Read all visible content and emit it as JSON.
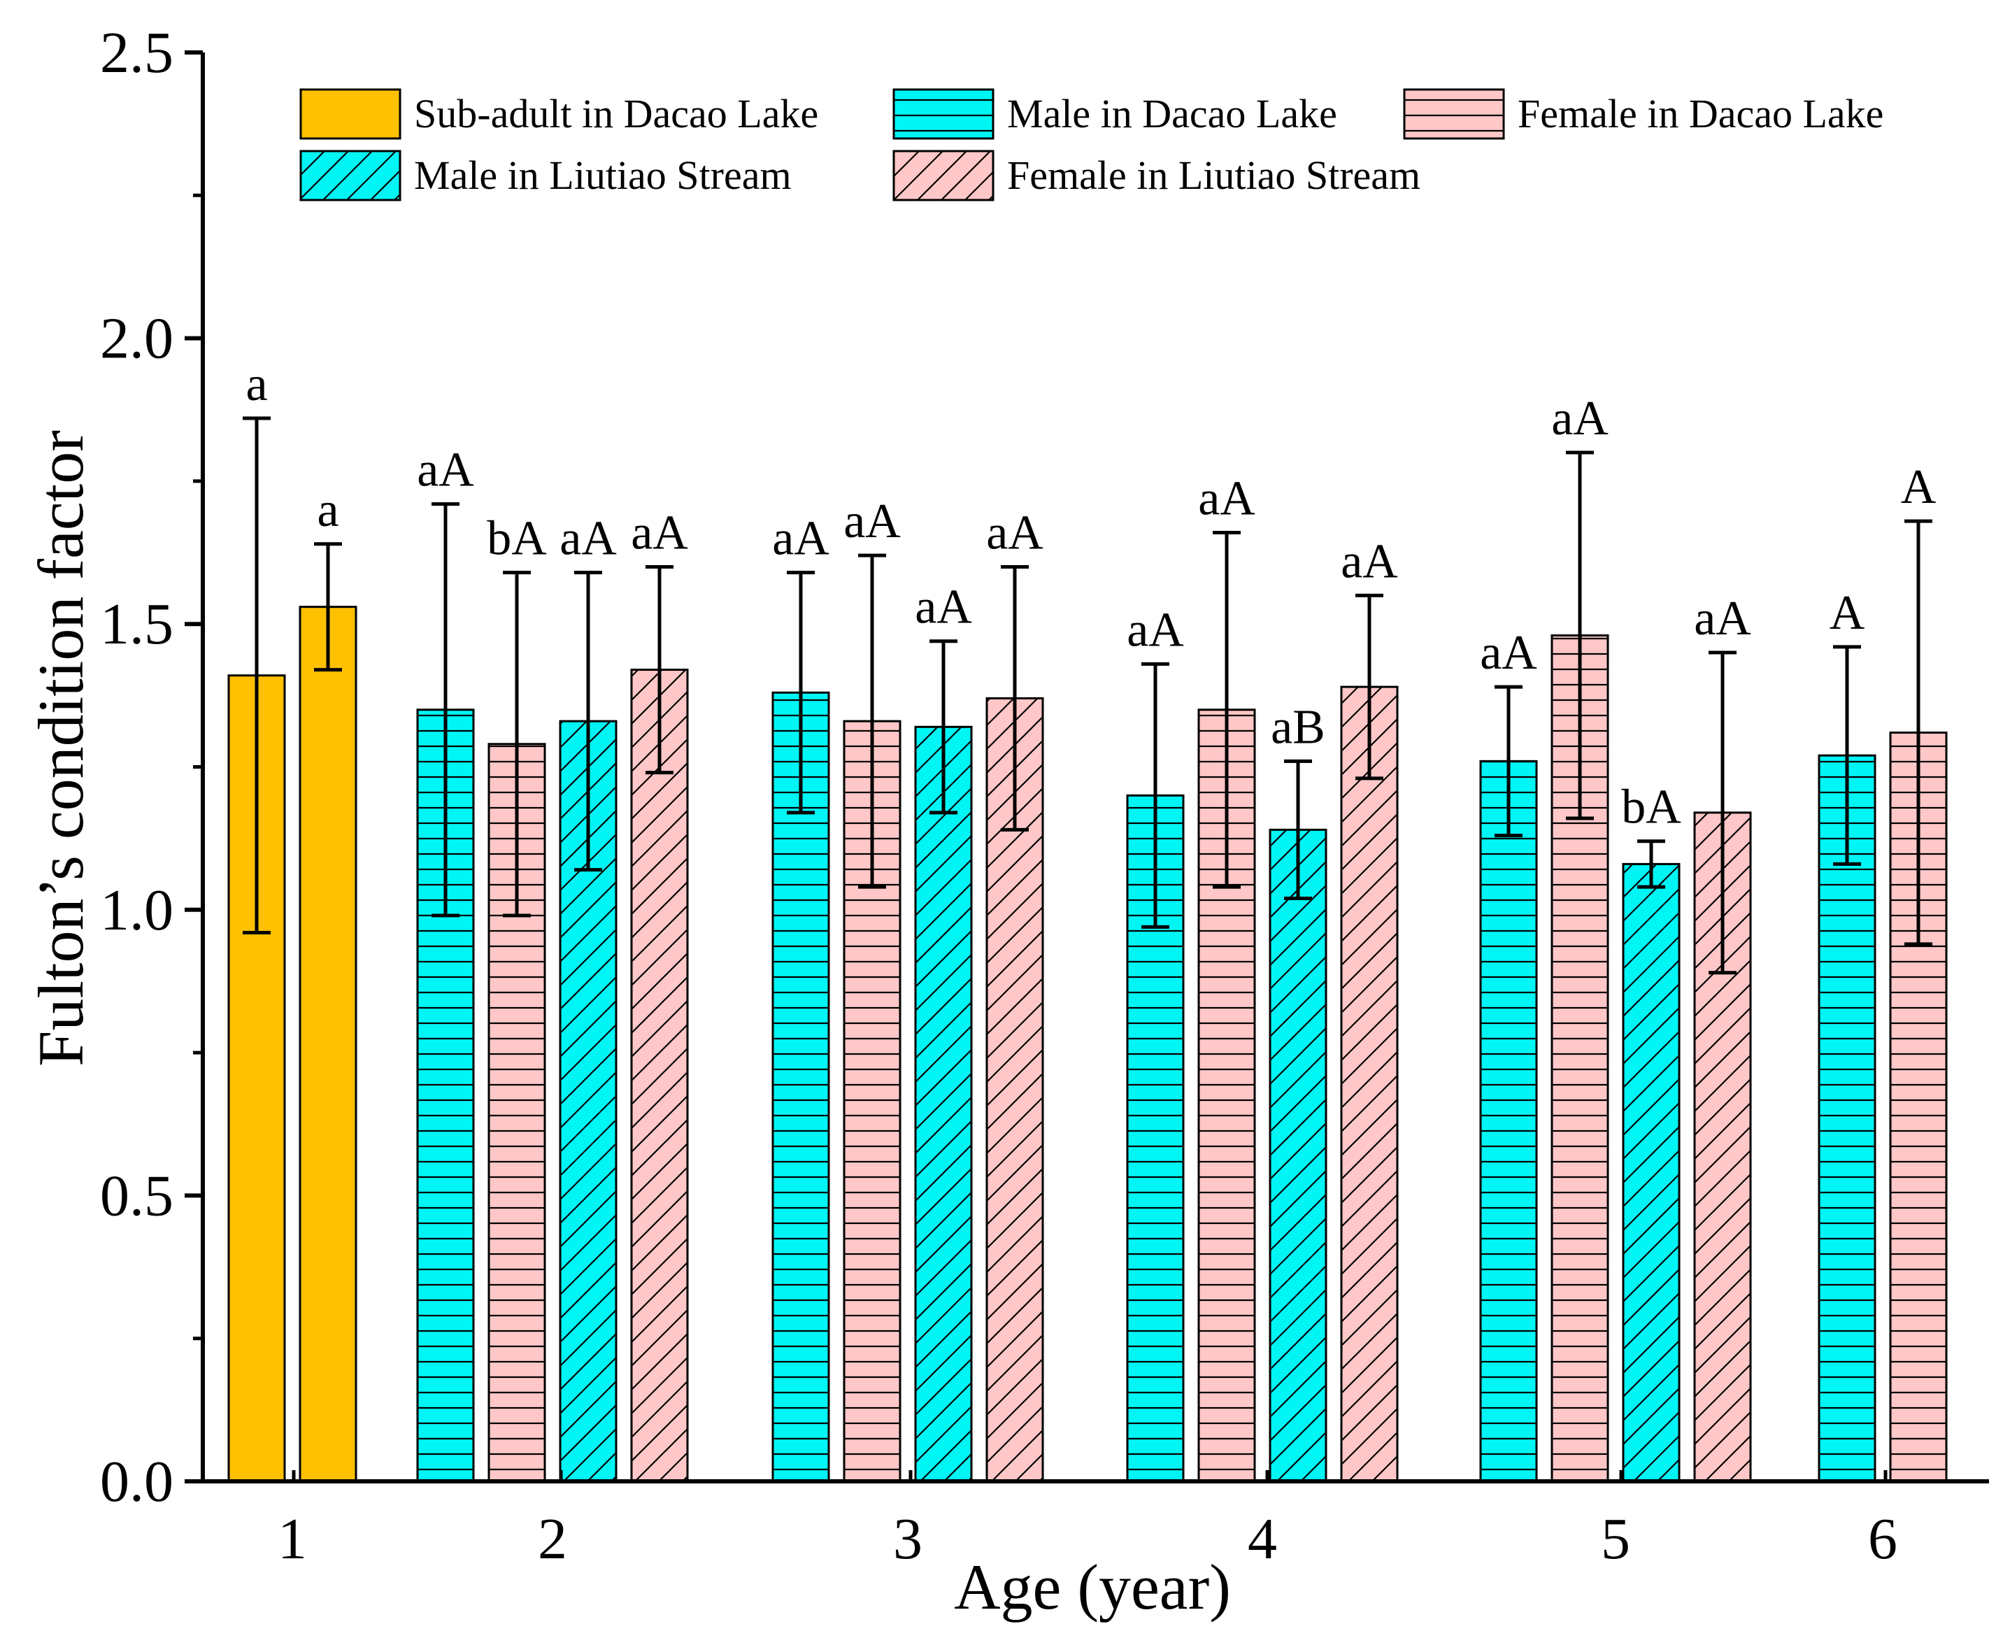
{
  "chart_data": {
    "type": "bar",
    "title": "",
    "xlabel": "Age (year)",
    "ylabel": "Fulton’s condition factor",
    "ylim": [
      0,
      2.5
    ],
    "yticks": [
      "0.0",
      "0.5",
      "1.0",
      "1.5",
      "2.0",
      "2.5"
    ],
    "categories": [
      "1",
      "2",
      "3",
      "4",
      "5",
      "6"
    ],
    "legend_position": "top",
    "series": [
      {
        "key": "sub",
        "name": "Sub-adult in Dacao Lake",
        "color": "#FFC000",
        "pattern": "solid"
      },
      {
        "key": "mdl",
        "name": "Male in Dacao Lake",
        "color": "#00F5F5",
        "pattern": "horizontal"
      },
      {
        "key": "fdl",
        "name": "Female in Dacao Lake",
        "color": "#FFC7C7",
        "pattern": "horizontal"
      },
      {
        "key": "mls",
        "name": "Male in Liutiao Stream",
        "color": "#00F5F5",
        "pattern": "diagonal"
      },
      {
        "key": "fls",
        "name": "Female in Liutiao Stream",
        "color": "#FFC7C7",
        "pattern": "diagonal"
      }
    ],
    "bars": [
      {
        "age": "1",
        "series": "sub",
        "value": 1.41,
        "err_low": 0.96,
        "err_high": 1.86,
        "label": "a"
      },
      {
        "age": "1",
        "series": "sub",
        "value": 1.53,
        "err_low": 1.42,
        "err_high": 1.64,
        "label": "a"
      },
      {
        "age": "2",
        "series": "mdl",
        "value": 1.35,
        "err_low": 0.99,
        "err_high": 1.71,
        "label": "aA"
      },
      {
        "age": "2",
        "series": "fdl",
        "value": 1.29,
        "err_low": 0.99,
        "err_high": 1.59,
        "label": "bA"
      },
      {
        "age": "2",
        "series": "mls",
        "value": 1.33,
        "err_low": 1.07,
        "err_high": 1.59,
        "label": "aA"
      },
      {
        "age": "2",
        "series": "fls",
        "value": 1.42,
        "err_low": 1.24,
        "err_high": 1.6,
        "label": "aA"
      },
      {
        "age": "3",
        "series": "mdl",
        "value": 1.38,
        "err_low": 1.17,
        "err_high": 1.59,
        "label": "aA"
      },
      {
        "age": "3",
        "series": "fdl",
        "value": 1.33,
        "err_low": 1.04,
        "err_high": 1.62,
        "label": "aA"
      },
      {
        "age": "3",
        "series": "mls",
        "value": 1.32,
        "err_low": 1.17,
        "err_high": 1.47,
        "label": "aA"
      },
      {
        "age": "3",
        "series": "fls",
        "value": 1.37,
        "err_low": 1.14,
        "err_high": 1.6,
        "label": "aA"
      },
      {
        "age": "4",
        "series": "mdl",
        "value": 1.2,
        "err_low": 0.97,
        "err_high": 1.43,
        "label": "aA"
      },
      {
        "age": "4",
        "series": "fdl",
        "value": 1.35,
        "err_low": 1.04,
        "err_high": 1.66,
        "label": "aA"
      },
      {
        "age": "4",
        "series": "mls",
        "value": 1.14,
        "err_low": 1.02,
        "err_high": 1.26,
        "label": "aB"
      },
      {
        "age": "4",
        "series": "fls",
        "value": 1.39,
        "err_low": 1.23,
        "err_high": 1.55,
        "label": "aA"
      },
      {
        "age": "5",
        "series": "mdl",
        "value": 1.26,
        "err_low": 1.13,
        "err_high": 1.39,
        "label": "aA"
      },
      {
        "age": "5",
        "series": "fdl",
        "value": 1.48,
        "err_low": 1.16,
        "err_high": 1.8,
        "label": "aA"
      },
      {
        "age": "5",
        "series": "mls",
        "value": 1.08,
        "err_low": 1.04,
        "err_high": 1.12,
        "label": "bA"
      },
      {
        "age": "5",
        "series": "fls",
        "value": 1.17,
        "err_low": 0.89,
        "err_high": 1.45,
        "label": "aA"
      },
      {
        "age": "6",
        "series": "mdl",
        "value": 1.27,
        "err_low": 1.08,
        "err_high": 1.46,
        "label": "A"
      },
      {
        "age": "6",
        "series": "fdl",
        "value": 1.31,
        "err_low": 0.94,
        "err_high": 1.68,
        "label": "A"
      }
    ]
  }
}
